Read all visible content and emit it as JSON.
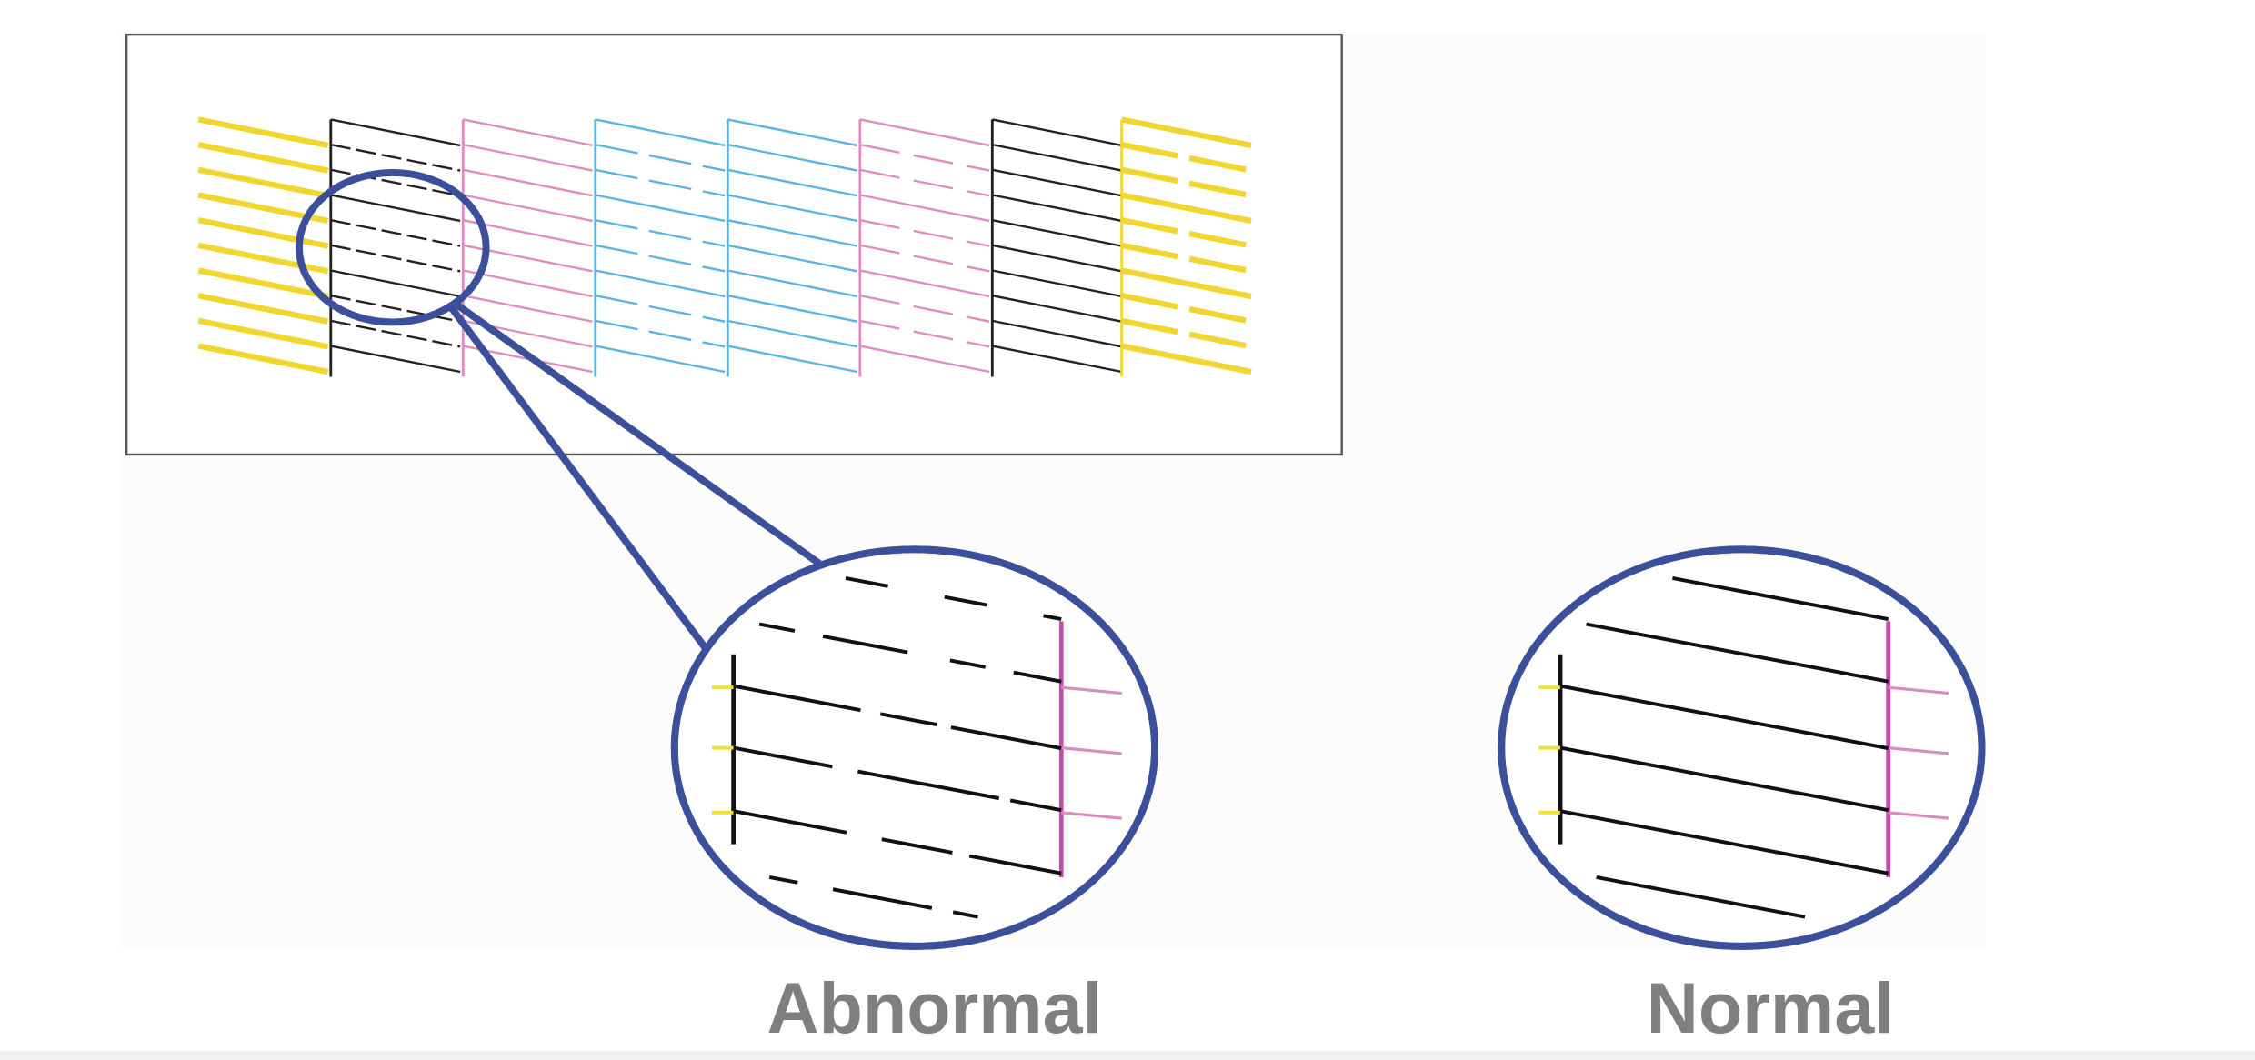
{
  "labels": {
    "abnormal": "Abnormal",
    "normal": "Normal"
  }
}
